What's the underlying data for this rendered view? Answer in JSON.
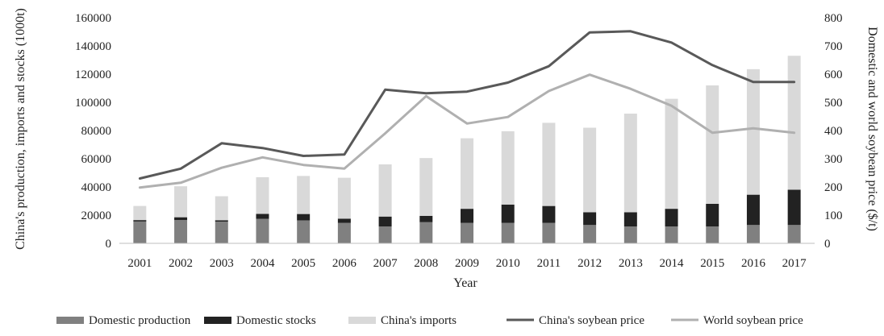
{
  "chart_data": {
    "type": "bar",
    "subtype": "stacked bar with lines on secondary axis",
    "categories": [
      "2001",
      "2002",
      "2003",
      "2004",
      "2005",
      "2006",
      "2007",
      "2008",
      "2009",
      "2010",
      "2011",
      "2012",
      "2013",
      "2014",
      "2015",
      "2016",
      "2017"
    ],
    "series": [
      {
        "name": "Domestic production",
        "type": "bar",
        "axis": "left",
        "color": "#808080",
        "values": [
          15500,
          16500,
          15400,
          17400,
          16300,
          14500,
          12000,
          15000,
          14500,
          14500,
          14500,
          13000,
          12000,
          12000,
          12000,
          13000,
          13000
        ]
      },
      {
        "name": "Domestic stocks",
        "type": "bar",
        "axis": "left",
        "color": "#222222",
        "values": [
          1000,
          2000,
          1000,
          3500,
          4500,
          3000,
          7000,
          4500,
          10000,
          13000,
          12000,
          9000,
          10000,
          12500,
          16000,
          21500,
          25000
        ]
      },
      {
        "name": "China's imports",
        "type": "bar",
        "axis": "left",
        "color": "#d9d9d9",
        "values": [
          10000,
          22000,
          17000,
          26000,
          27000,
          29000,
          37000,
          41000,
          50000,
          52000,
          59000,
          60000,
          70000,
          78000,
          84000,
          89000,
          95000
        ]
      },
      {
        "name": "China's soybean price",
        "type": "line",
        "axis": "right",
        "color": "#595959",
        "values": [
          230,
          265,
          355,
          338,
          310,
          315,
          545,
          532,
          538,
          570,
          628,
          748,
          752,
          712,
          632,
          572,
          572
        ]
      },
      {
        "name": "World soybean price",
        "type": "line",
        "axis": "right",
        "color": "#b0b0b0",
        "values": [
          198,
          215,
          268,
          305,
          278,
          265,
          390,
          522,
          425,
          448,
          540,
          598,
          548,
          488,
          392,
          408,
          392
        ]
      }
    ],
    "xlabel": "Year",
    "ylabel": "China's production, imports and stocks (1000t)",
    "y2label": "Domestic and world soybean price  ($/t)",
    "ylim": [
      0,
      160000
    ],
    "y2lim": [
      0,
      800
    ],
    "yticks": [
      "0",
      "20000",
      "40000",
      "60000",
      "80000",
      "100000",
      "120000",
      "140000",
      "160000"
    ],
    "y2ticks": [
      "0",
      "100",
      "200",
      "300",
      "400",
      "500",
      "600",
      "700",
      "800"
    ],
    "grid": false,
    "legend": "bottom"
  }
}
